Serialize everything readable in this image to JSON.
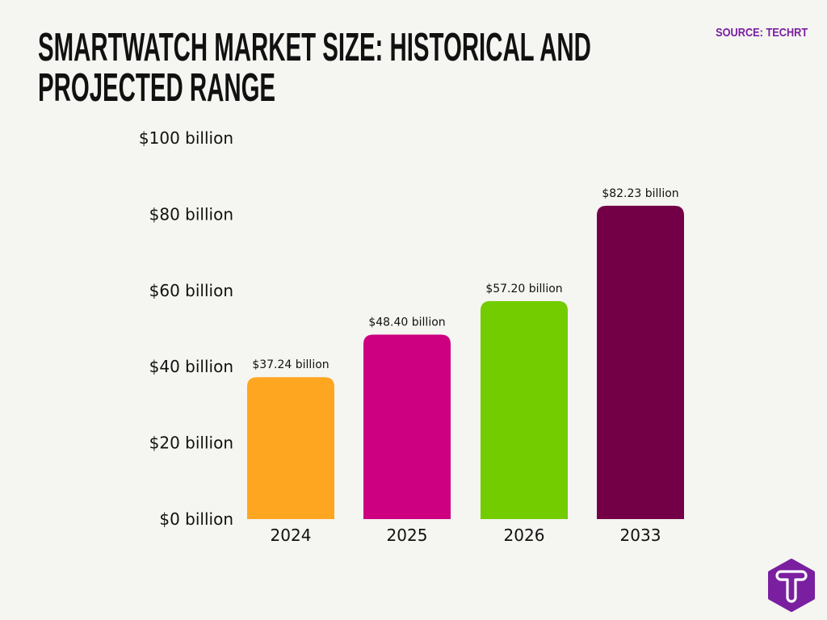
{
  "title": "SMARTWATCH MARKET SIZE: HISTORICAL AND PROJECTED RANGE",
  "source": "SOURCE: TECHRT",
  "logo": {
    "text": "T",
    "color": "#7a1fa0",
    "icon": "techrt-logo-icon"
  },
  "chart_data": {
    "type": "bar",
    "title": "SMARTWATCH MARKET SIZE: HISTORICAL AND PROJECTED RANGE",
    "categories": [
      "2024",
      "2025",
      "2026",
      "2033"
    ],
    "values": [
      37.24,
      48.4,
      57.2,
      82.23
    ],
    "data_labels": [
      "$37.24 billion",
      "$48.40 billion",
      "$57.20 billion",
      "$82.23 billion"
    ],
    "colors": [
      "#ffa621",
      "#cc0080",
      "#72cc00",
      "#730046"
    ],
    "yticks": [
      0,
      20,
      40,
      60,
      80,
      100
    ],
    "ytick_labels": [
      "$0 billion",
      "$20 billion",
      "$40 billion",
      "$60 billion",
      "$80 billion",
      "$100 billion"
    ],
    "ylim": [
      0,
      100
    ],
    "xlabel": "",
    "ylabel": "",
    "grid": false,
    "legend": "none"
  }
}
